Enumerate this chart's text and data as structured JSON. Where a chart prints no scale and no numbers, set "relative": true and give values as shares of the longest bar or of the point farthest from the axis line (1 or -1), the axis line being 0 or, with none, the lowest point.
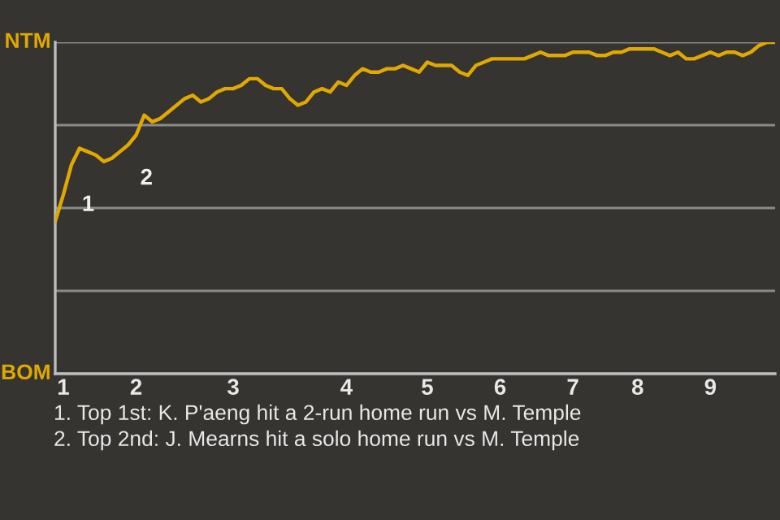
{
  "chart_data": {
    "type": "line",
    "relative": true,
    "categories": [
      null,
      "1",
      null,
      null,
      null,
      null,
      null,
      null,
      null,
      null,
      "2",
      null,
      null,
      null,
      null,
      null,
      null,
      null,
      null,
      null,
      null,
      null,
      "3",
      null,
      null,
      null,
      null,
      null,
      null,
      null,
      null,
      null,
      null,
      null,
      null,
      null,
      "4",
      null,
      null,
      null,
      null,
      null,
      null,
      null,
      null,
      null,
      "5",
      null,
      null,
      null,
      null,
      null,
      null,
      null,
      null,
      "6",
      null,
      null,
      null,
      null,
      null,
      null,
      null,
      null,
      "7",
      null,
      null,
      null,
      null,
      null,
      null,
      null,
      "8",
      null,
      null,
      null,
      null,
      null,
      null,
      null,
      null,
      "9",
      null,
      null,
      null,
      null,
      null,
      null,
      null,
      null
    ],
    "series": [
      {
        "color": "#e0a800",
        "values": [
          0.46,
          0.54,
          0.63,
          0.68,
          0.67,
          0.66,
          0.64,
          0.65,
          0.67,
          0.69,
          0.72,
          0.78,
          0.76,
          0.77,
          0.79,
          0.81,
          0.83,
          0.84,
          0.82,
          0.83,
          0.85,
          0.86,
          0.86,
          0.87,
          0.89,
          0.89,
          0.87,
          0.86,
          0.86,
          0.83,
          0.81,
          0.82,
          0.85,
          0.86,
          0.85,
          0.88,
          0.87,
          0.9,
          0.92,
          0.91,
          0.91,
          0.92,
          0.92,
          0.93,
          0.92,
          0.91,
          0.94,
          0.93,
          0.93,
          0.93,
          0.91,
          0.9,
          0.93,
          0.94,
          0.95,
          0.95,
          0.95,
          0.95,
          0.95,
          0.96,
          0.97,
          0.96,
          0.96,
          0.96,
          0.97,
          0.97,
          0.97,
          0.96,
          0.96,
          0.97,
          0.97,
          0.98,
          0.98,
          0.98,
          0.98,
          0.97,
          0.96,
          0.97,
          0.95,
          0.95,
          0.96,
          0.97,
          0.96,
          0.97,
          0.97,
          0.96,
          0.97,
          0.99,
          1,
          1
        ]
      }
    ],
    "grid": "y",
    "annotations": [
      "NTM",
      "BOM",
      "1",
      "2",
      "1. Top 1st: K. P'aeng hit a 2-run home run vs M. Temple",
      "2. Top 2nd: J. Mearns hit a solo home run vs M. Temple"
    ]
  }
}
